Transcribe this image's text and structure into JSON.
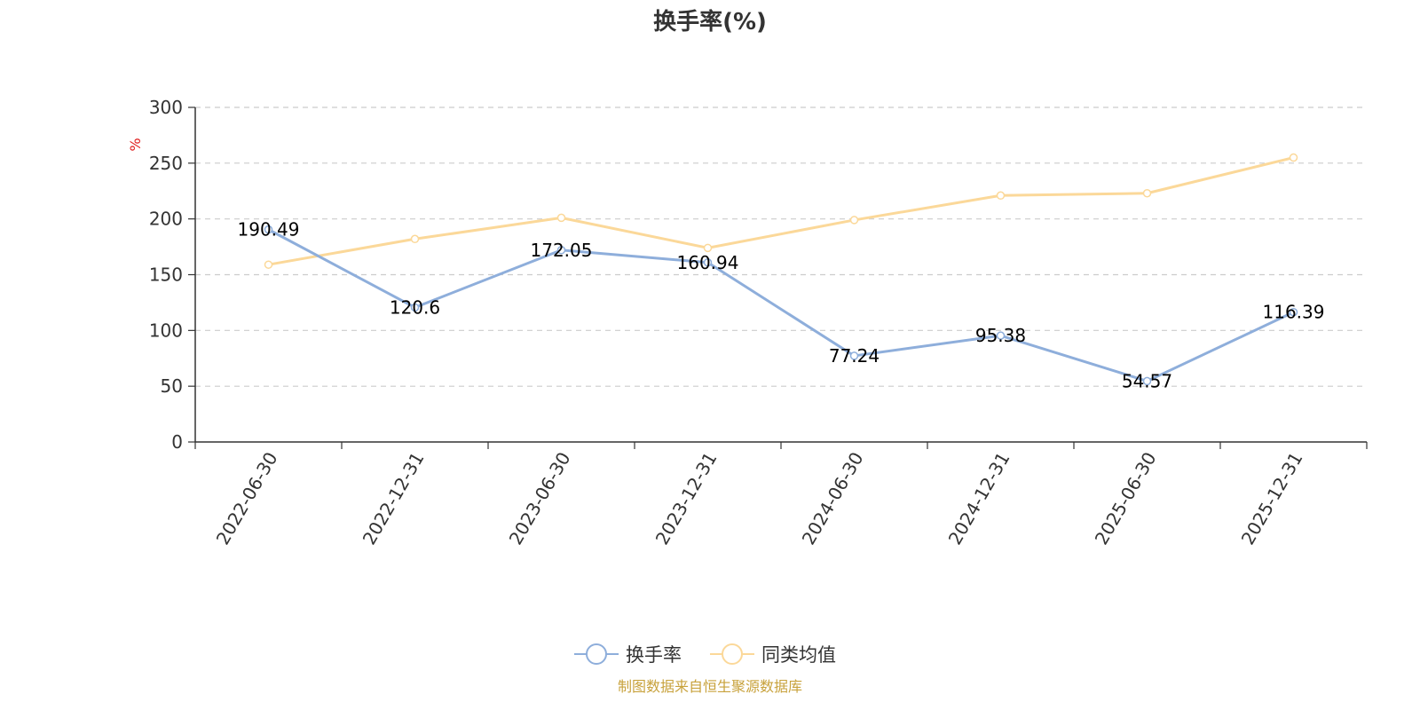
{
  "chart_data": {
    "type": "line",
    "title": "换手率(%)",
    "ylabel": "%",
    "ylim": [
      0,
      300
    ],
    "yticks": [
      0,
      50,
      100,
      150,
      200,
      250,
      300
    ],
    "categories": [
      "2022-06-30",
      "2022-12-31",
      "2023-06-30",
      "2023-12-31",
      "2024-06-30",
      "2024-12-31",
      "2025-06-30",
      "2025-12-31"
    ],
    "series": [
      {
        "name": "换手率",
        "color": "#8eaedb",
        "values": [
          190.49,
          120.6,
          172.05,
          160.94,
          77.24,
          95.38,
          54.57,
          116.39
        ],
        "labels": [
          "190.49",
          "120.6",
          "172.05",
          "160.94",
          "77.24",
          "95.38",
          "54.57",
          "116.39"
        ],
        "show_labels": true
      },
      {
        "name": "同类均值",
        "color": "#fbd899",
        "values": [
          159,
          182,
          201,
          174,
          199,
          221,
          223,
          255
        ],
        "show_labels": false
      }
    ],
    "grid": "horizontal-dashed",
    "legend_position": "bottom-center"
  },
  "footer": {
    "source_text": "制图数据来自恒生聚源数据库",
    "color": "#c8a23c"
  },
  "colors": {
    "axis": "#333333",
    "grid": "#cccccc",
    "ylabel": "#e02020"
  }
}
